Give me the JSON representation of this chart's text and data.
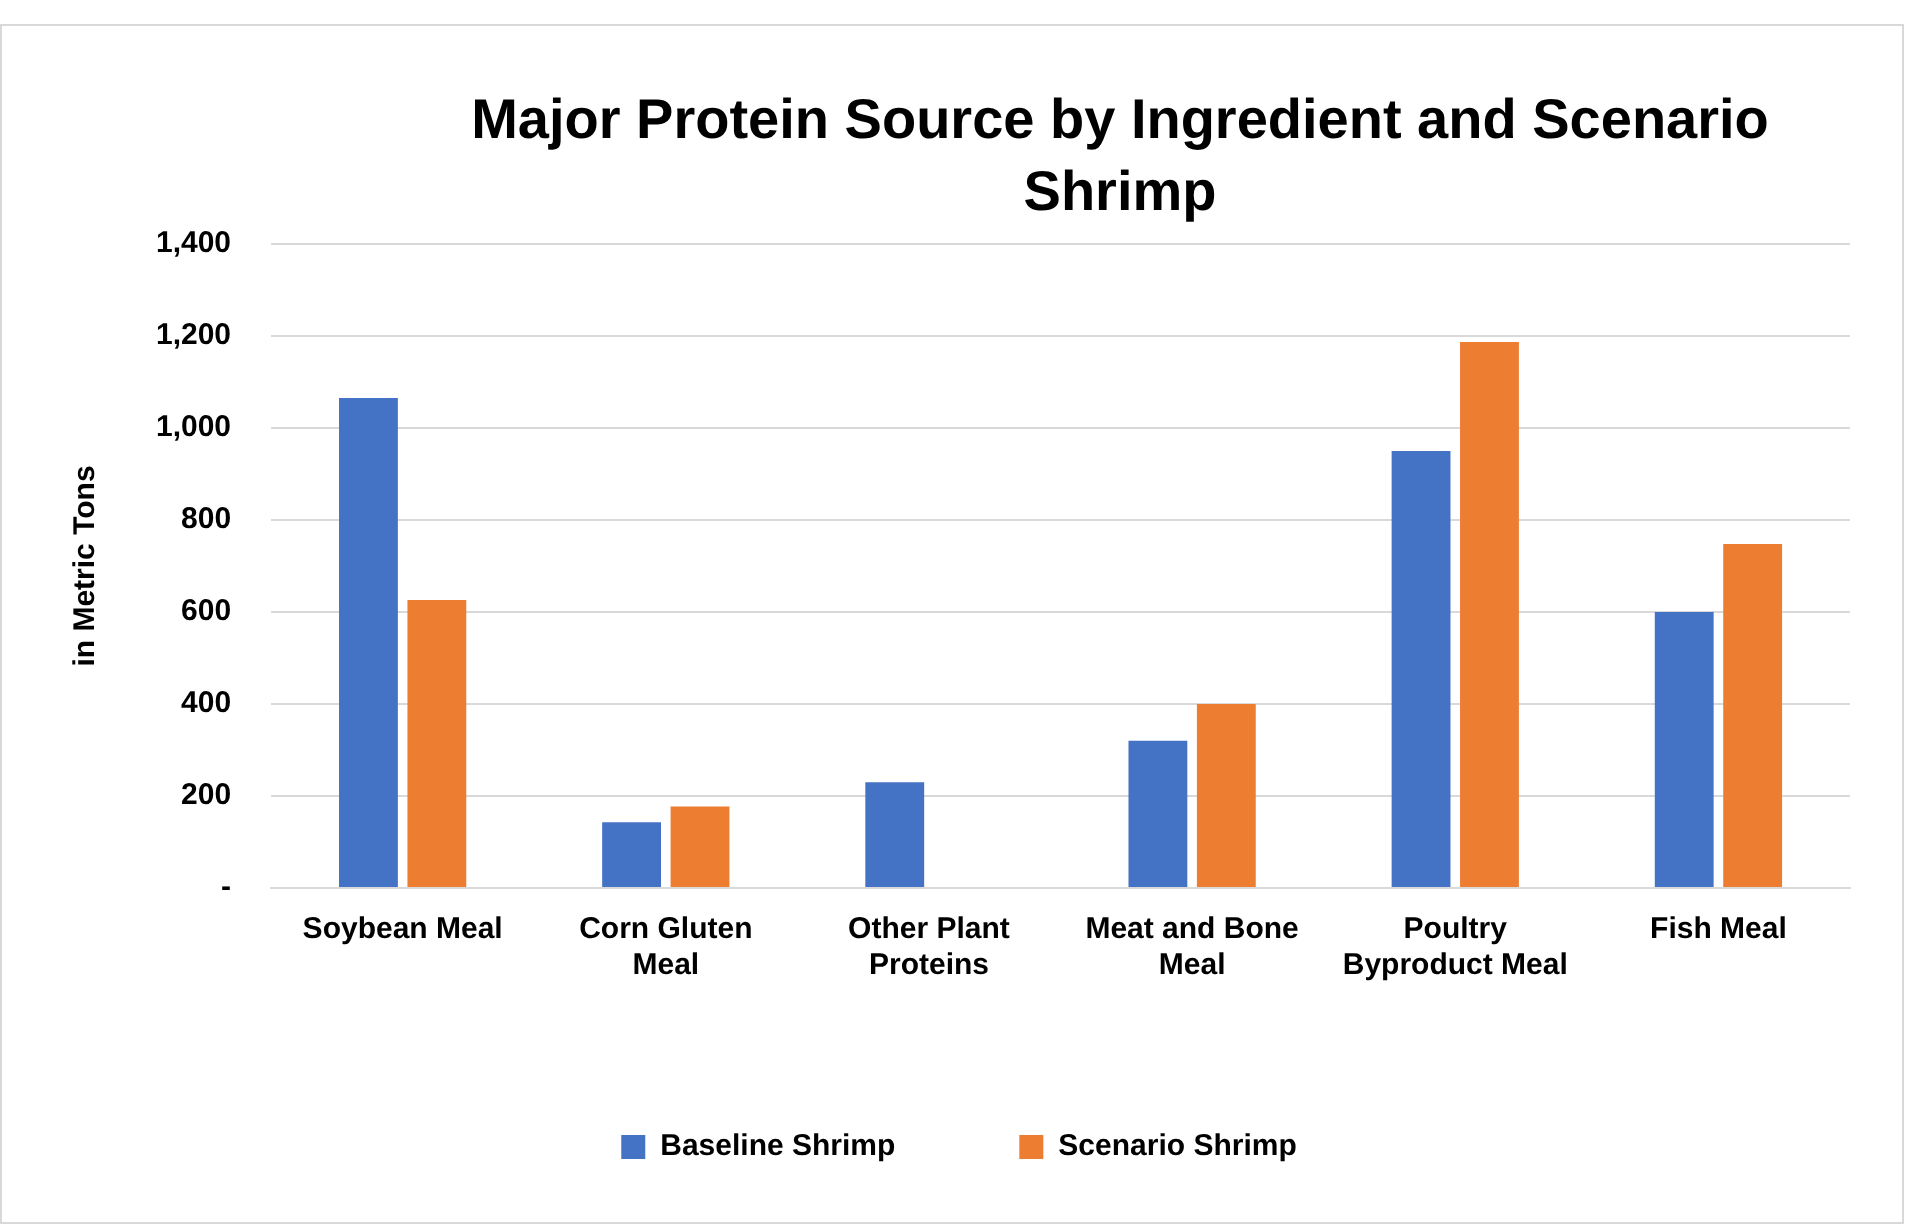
{
  "chart_data": {
    "type": "bar",
    "title": "Major Protein Source by Ingredient and Scenario Shrimp",
    "ylabel": "in Metric Tons",
    "categories": [
      "Soybean Meal",
      "Corn Gluten Meal",
      "Other Plant Proteins",
      "Meat and Bone Meal",
      "Poultry Byproduct Meal",
      "Fish Meal"
    ],
    "series": [
      {
        "name": "Baseline Shrimp",
        "color": "#4472c4",
        "values": [
          1065,
          143,
          230,
          320,
          950,
          600
        ]
      },
      {
        "name": "Scenario Shrimp",
        "color": "#ed7d31",
        "values": [
          626,
          177,
          null,
          400,
          1187,
          748
        ]
      }
    ],
    "ylim": [
      0,
      1400
    ],
    "yticks": [
      {
        "value": 0,
        "label": "-"
      },
      200,
      400,
      600,
      800,
      {
        "value": 1000,
        "label": "1,000"
      },
      {
        "value": 1200,
        "label": "1,200"
      },
      {
        "value": 1400,
        "label": "1,400"
      }
    ],
    "grid": "y",
    "legend": "bottom"
  }
}
